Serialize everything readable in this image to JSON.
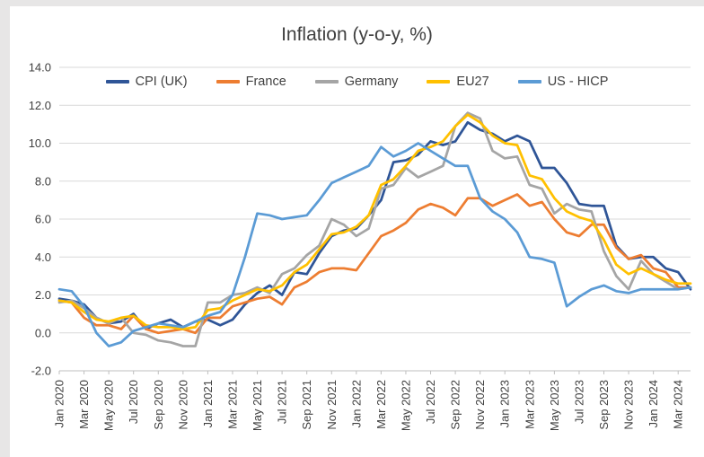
{
  "colors": {
    "sheet_background": "#E7E6E6",
    "chart_background": "#FFFFFF",
    "grid": "#D9D9D9",
    "axis": "#BFBFBF",
    "text": "#404040"
  },
  "chart_data": {
    "type": "line",
    "title": "Inflation (y-o-y, %)",
    "legend_position": "top",
    "grid": true,
    "x_tick_every": 2,
    "x": [
      "Jan 2020",
      "Feb 2020",
      "Mar 2020",
      "Apr 2020",
      "May 2020",
      "Jun 2020",
      "Jul 2020",
      "Aug 2020",
      "Sep 2020",
      "Oct 2020",
      "Nov 2020",
      "Dec 2020",
      "Jan 2021",
      "Feb 2021",
      "Mar 2021",
      "Apr 2021",
      "May 2021",
      "Jun 2021",
      "Jul 2021",
      "Aug 2021",
      "Sep 2021",
      "Oct 2021",
      "Nov 2021",
      "Dec 2021",
      "Jan 2022",
      "Feb 2022",
      "Mar 2022",
      "Apr 2022",
      "May 2022",
      "Jun 2022",
      "Jul 2022",
      "Aug 2022",
      "Sep 2022",
      "Oct 2022",
      "Nov 2022",
      "Dec 2022",
      "Jan 2023",
      "Feb 2023",
      "Mar 2023",
      "Apr 2023",
      "May 2023",
      "Jun 2023",
      "Jul 2023",
      "Aug 2023",
      "Sep 2023",
      "Oct 2023",
      "Nov 2023",
      "Dec 2023",
      "Jan 2024",
      "Feb 2024",
      "Mar 2024",
      "Apr 2024"
    ],
    "y_axis": {
      "min": -2.0,
      "max": 14.0,
      "step": 2.0,
      "decimals": 1
    },
    "series": [
      {
        "name": "CPI (UK)",
        "color": "#2F5597",
        "values": [
          1.8,
          1.7,
          1.5,
          0.8,
          0.5,
          0.6,
          1.0,
          0.2,
          0.5,
          0.7,
          0.3,
          0.6,
          0.7,
          0.4,
          0.7,
          1.5,
          2.1,
          2.5,
          2.0,
          3.2,
          3.1,
          4.2,
          5.1,
          5.4,
          5.5,
          6.2,
          7.0,
          9.0,
          9.1,
          9.4,
          10.1,
          9.9,
          10.1,
          11.1,
          10.7,
          10.5,
          10.1,
          10.4,
          10.1,
          8.7,
          8.7,
          7.9,
          6.8,
          6.7,
          6.7,
          4.6,
          3.9,
          4.0,
          4.0,
          3.4,
          3.2,
          2.3
        ]
      },
      {
        "name": "France",
        "color": "#ED7D31",
        "values": [
          1.7,
          1.6,
          0.8,
          0.4,
          0.4,
          0.2,
          0.9,
          0.2,
          0.0,
          0.1,
          0.2,
          0.0,
          0.8,
          0.8,
          1.4,
          1.6,
          1.8,
          1.9,
          1.5,
          2.4,
          2.7,
          3.2,
          3.4,
          3.4,
          3.3,
          4.2,
          5.1,
          5.4,
          5.8,
          6.5,
          6.8,
          6.6,
          6.2,
          7.1,
          7.1,
          6.7,
          7.0,
          7.3,
          6.7,
          6.9,
          6.0,
          5.3,
          5.1,
          5.7,
          5.7,
          4.5,
          3.9,
          4.1,
          3.4,
          3.2,
          2.4,
          2.4
        ]
      },
      {
        "name": "Germany",
        "color": "#A5A5A5",
        "values": [
          1.6,
          1.7,
          1.3,
          0.8,
          0.5,
          0.8,
          0.0,
          -0.1,
          -0.4,
          -0.5,
          -0.7,
          -0.7,
          1.6,
          1.6,
          2.0,
          2.1,
          2.4,
          2.1,
          3.1,
          3.4,
          4.1,
          4.6,
          6.0,
          5.7,
          5.1,
          5.5,
          7.6,
          7.8,
          8.7,
          8.2,
          8.5,
          8.8,
          10.9,
          11.6,
          11.3,
          9.6,
          9.2,
          9.3,
          7.8,
          7.6,
          6.3,
          6.8,
          6.5,
          6.4,
          4.3,
          3.0,
          2.3,
          3.8,
          3.1,
          2.7,
          2.3,
          2.4
        ]
      },
      {
        "name": "EU27",
        "color": "#FFC000",
        "values": [
          1.7,
          1.6,
          1.1,
          0.7,
          0.6,
          0.8,
          0.9,
          0.4,
          0.3,
          0.3,
          0.2,
          0.3,
          1.2,
          1.3,
          1.7,
          2.0,
          2.3,
          2.2,
          2.5,
          3.2,
          3.6,
          4.4,
          5.2,
          5.3,
          5.6,
          6.2,
          7.8,
          8.1,
          8.8,
          9.6,
          9.8,
          10.1,
          10.9,
          11.5,
          11.1,
          10.4,
          10.0,
          9.9,
          8.3,
          8.1,
          7.1,
          6.4,
          6.1,
          5.9,
          4.9,
          3.6,
          3.1,
          3.4,
          3.1,
          2.8,
          2.6,
          2.6
        ]
      },
      {
        "name": "US - HICP",
        "color": "#5B9BD5",
        "values": [
          2.3,
          2.2,
          1.4,
          0.0,
          -0.7,
          -0.5,
          0.1,
          0.3,
          0.5,
          0.4,
          0.3,
          0.6,
          0.9,
          1.1,
          2.0,
          4.0,
          6.3,
          6.2,
          6.0,
          6.1,
          6.2,
          7.0,
          7.9,
          8.2,
          8.5,
          8.8,
          9.8,
          9.3,
          9.6,
          10.0,
          9.6,
          9.2,
          8.8,
          8.8,
          7.1,
          6.4,
          6.0,
          5.3,
          4.0,
          3.9,
          3.7,
          1.4,
          1.9,
          2.3,
          2.5,
          2.2,
          2.1,
          2.3,
          2.3,
          2.3,
          2.3,
          2.4
        ]
      }
    ]
  }
}
